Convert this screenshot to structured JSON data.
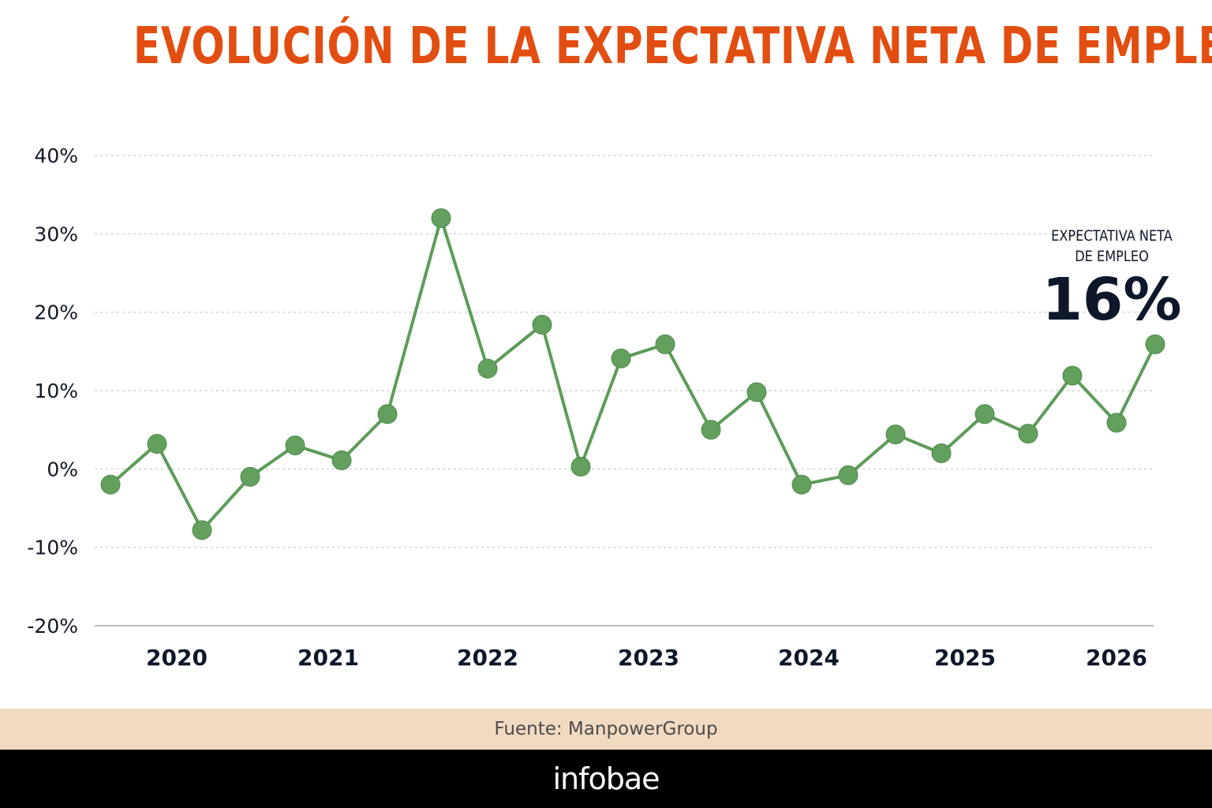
{
  "title": "EVOLUCIÓN DE LA EXPECTATIVA NETA DE EMPLEO",
  "callout": {
    "label_line1": "EXPECTATIVA NETA",
    "label_line2": "DE EMPLEO",
    "value": "16%"
  },
  "source": "Fuente: ManpowerGroup",
  "brand": "infobae",
  "colors": {
    "title": "#E24E11",
    "line": "#5E9B5A",
    "marker": "#63A05E",
    "source_bar": "#F2DAC1",
    "brand_bar": "#000000"
  },
  "chart_data": {
    "type": "line",
    "title": "EVOLUCIÓN DE LA EXPECTATIVA NETA DE EMPLEO",
    "xlabel": "",
    "ylabel": "",
    "ylim": [
      -20,
      40
    ],
    "yticks": [
      40,
      30,
      20,
      10,
      0,
      -10,
      -20
    ],
    "ytick_labels": [
      "40%",
      "30%",
      "20%",
      "10%",
      "0%",
      "-10%",
      "-20%"
    ],
    "year_labels": [
      "2020",
      "2021",
      "2022",
      "2023",
      "2024",
      "2025",
      "2026"
    ],
    "grid": true,
    "legend": "none",
    "series": [
      {
        "values": [
          -2,
          3.2,
          -7.8,
          -1,
          3,
          1.1,
          7,
          32,
          12.8,
          18.4,
          0.3,
          14.1,
          15.9,
          5,
          9.8,
          -2,
          -0.8,
          4.4,
          2,
          7,
          4.5,
          11.9,
          5.9,
          15.9
        ]
      }
    ]
  }
}
